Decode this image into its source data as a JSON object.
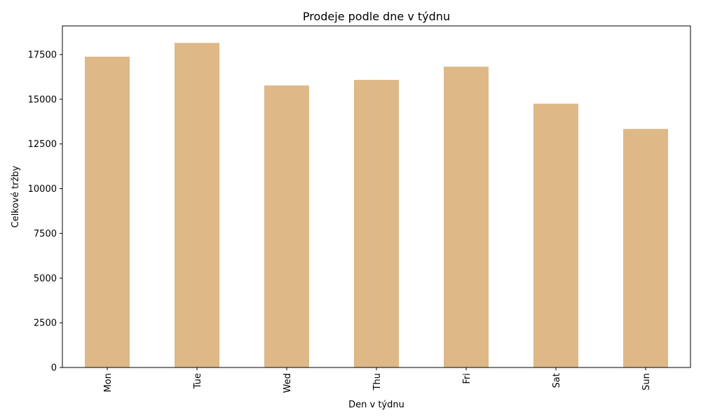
{
  "chart_data": {
    "type": "bar",
    "title": "Prodeje podle dne v týdnu",
    "xlabel": "Den v týdnu",
    "ylabel": "Celkové tržby",
    "categories": [
      "Mon",
      "Tue",
      "Wed",
      "Thu",
      "Fri",
      "Sat",
      "Sun"
    ],
    "values": [
      17380,
      18150,
      15770,
      16080,
      16820,
      14750,
      13340
    ],
    "ylim": [
      0,
      19100
    ],
    "yticks": [
      0,
      2500,
      5000,
      7500,
      10000,
      12500,
      15000,
      17500
    ],
    "grid": false,
    "legend": "none",
    "bar_color": "#deb887"
  }
}
